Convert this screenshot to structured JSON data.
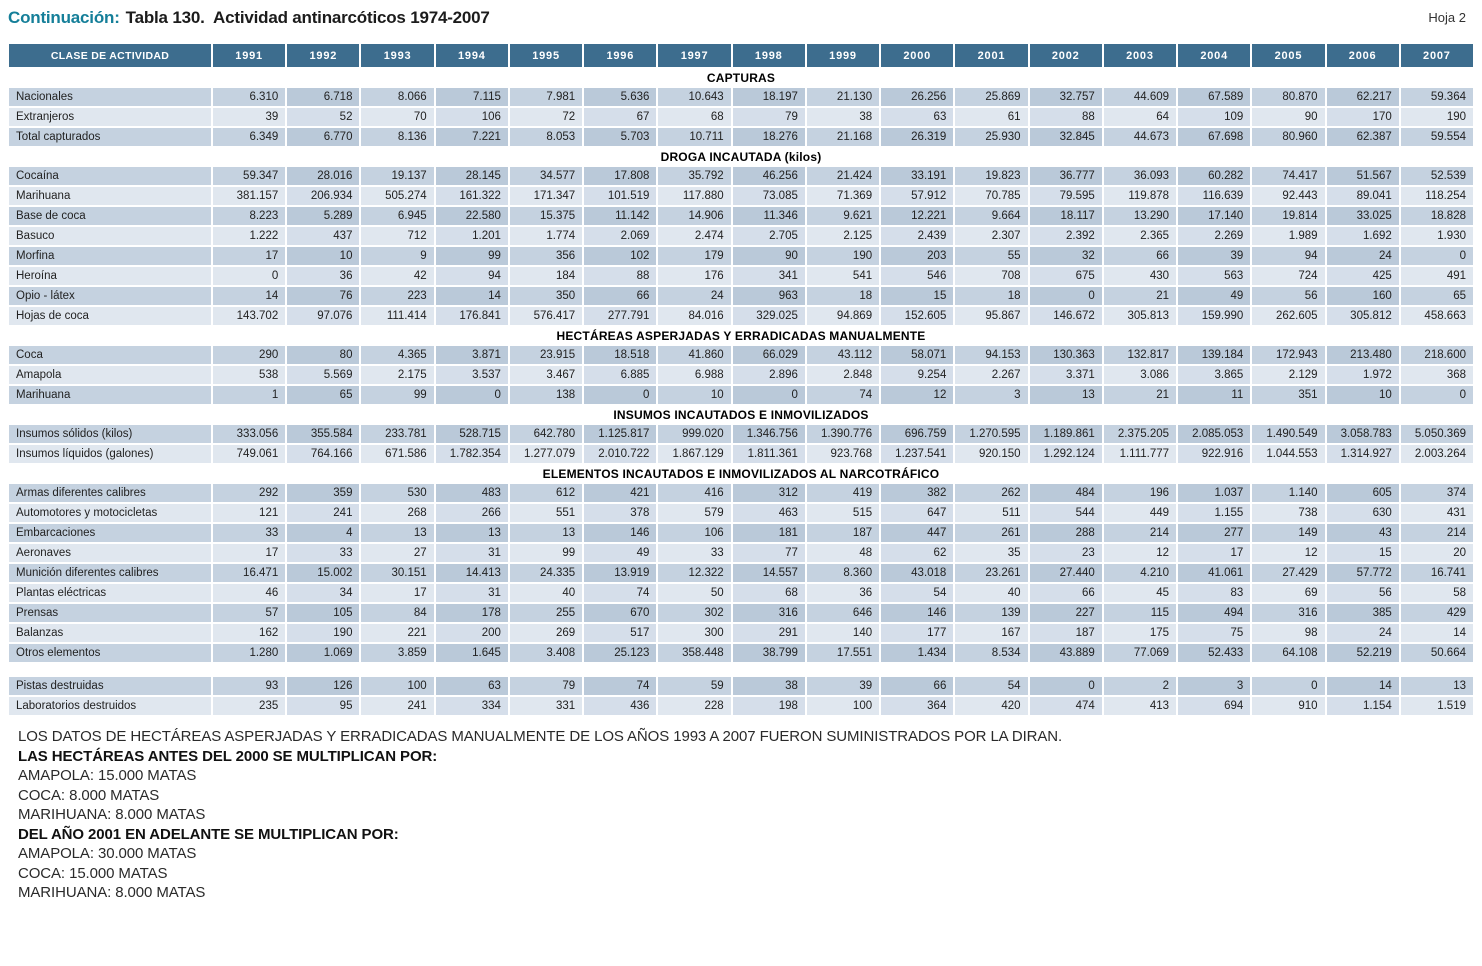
{
  "page": {
    "title_prefix": "Continuación:",
    "title": "Tabla 130.  Actividad antinarcóticos 1974-2007",
    "sheet_label": "Hoja 2"
  },
  "colors": {
    "header_bg": "#3d6d8e",
    "row_dark": "#c5d2e0",
    "row_light": "#e0e7ef",
    "accent_teal": "#157f99"
  },
  "table": {
    "header": {
      "activity_col": "CLASE DE ACTIVIDAD",
      "years": [
        "1991",
        "1992",
        "1993",
        "1994",
        "1995",
        "1996",
        "1997",
        "1998",
        "1999",
        "2000",
        "2001",
        "2002",
        "2003",
        "2004",
        "2005",
        "2006",
        "2007"
      ]
    },
    "sections": [
      {
        "title": "CAPTURAS",
        "rows": [
          {
            "label": "Nacionales",
            "values": [
              "6.310",
              "6.718",
              "8.066",
              "7.115",
              "7.981",
              "5.636",
              "10.643",
              "18.197",
              "21.130",
              "26.256",
              "25.869",
              "32.757",
              "44.609",
              "67.589",
              "80.870",
              "62.217",
              "59.364"
            ]
          },
          {
            "label": "Extranjeros",
            "values": [
              "39",
              "52",
              "70",
              "106",
              "72",
              "67",
              "68",
              "79",
              "38",
              "63",
              "61",
              "88",
              "64",
              "109",
              "90",
              "170",
              "190"
            ]
          },
          {
            "label": "Total capturados",
            "values": [
              "6.349",
              "6.770",
              "8.136",
              "7.221",
              "8.053",
              "5.703",
              "10.711",
              "18.276",
              "21.168",
              "26.319",
              "25.930",
              "32.845",
              "44.673",
              "67.698",
              "80.960",
              "62.387",
              "59.554"
            ]
          }
        ]
      },
      {
        "title": "DROGA INCAUTADA (kilos)",
        "rows": [
          {
            "label": "Cocaína",
            "values": [
              "59.347",
              "28.016",
              "19.137",
              "28.145",
              "34.577",
              "17.808",
              "35.792",
              "46.256",
              "21.424",
              "33.191",
              "19.823",
              "36.777",
              "36.093",
              "60.282",
              "74.417",
              "51.567",
              "52.539"
            ]
          },
          {
            "label": "Marihuana",
            "values": [
              "381.157",
              "206.934",
              "505.274",
              "161.322",
              "171.347",
              "101.519",
              "117.880",
              "73.085",
              "71.369",
              "57.912",
              "70.785",
              "79.595",
              "119.878",
              "116.639",
              "92.443",
              "89.041",
              "118.254"
            ]
          },
          {
            "label": "Base de coca",
            "values": [
              "8.223",
              "5.289",
              "6.945",
              "22.580",
              "15.375",
              "11.142",
              "14.906",
              "11.346",
              "9.621",
              "12.221",
              "9.664",
              "18.117",
              "13.290",
              "17.140",
              "19.814",
              "33.025",
              "18.828"
            ]
          },
          {
            "label": "Basuco",
            "values": [
              "1.222",
              "437",
              "712",
              "1.201",
              "1.774",
              "2.069",
              "2.474",
              "2.705",
              "2.125",
              "2.439",
              "2.307",
              "2.392",
              "2.365",
              "2.269",
              "1.989",
              "1.692",
              "1.930"
            ]
          },
          {
            "label": "Morfina",
            "values": [
              "17",
              "10",
              "9",
              "99",
              "356",
              "102",
              "179",
              "90",
              "190",
              "203",
              "55",
              "32",
              "66",
              "39",
              "94",
              "24",
              "0"
            ]
          },
          {
            "label": "Heroína",
            "values": [
              "0",
              "36",
              "42",
              "94",
              "184",
              "88",
              "176",
              "341",
              "541",
              "546",
              "708",
              "675",
              "430",
              "563",
              "724",
              "425",
              "491"
            ]
          },
          {
            "label": "Opio - látex",
            "values": [
              "14",
              "76",
              "223",
              "14",
              "350",
              "66",
              "24",
              "963",
              "18",
              "15",
              "18",
              "0",
              "21",
              "49",
              "56",
              "160",
              "65"
            ]
          },
          {
            "label": "Hojas de coca",
            "values": [
              "143.702",
              "97.076",
              "111.414",
              "176.841",
              "576.417",
              "277.791",
              "84.016",
              "329.025",
              "94.869",
              "152.605",
              "95.867",
              "146.672",
              "305.813",
              "159.990",
              "262.605",
              "305.812",
              "458.663"
            ]
          }
        ]
      },
      {
        "title": "HECTÁREAS ASPERJADAS Y ERRADICADAS MANUALMENTE",
        "rows": [
          {
            "label": "Coca",
            "values": [
              "290",
              "80",
              "4.365",
              "3.871",
              "23.915",
              "18.518",
              "41.860",
              "66.029",
              "43.112",
              "58.071",
              "94.153",
              "130.363",
              "132.817",
              "139.184",
              "172.943",
              "213.480",
              "218.600"
            ]
          },
          {
            "label": "Amapola",
            "values": [
              "538",
              "5.569",
              "2.175",
              "3.537",
              "3.467",
              "6.885",
              "6.988",
              "2.896",
              "2.848",
              "9.254",
              "2.267",
              "3.371",
              "3.086",
              "3.865",
              "2.129",
              "1.972",
              "368"
            ]
          },
          {
            "label": "Marihuana",
            "values": [
              "1",
              "65",
              "99",
              "0",
              "138",
              "0",
              "10",
              "0",
              "74",
              "12",
              "3",
              "13",
              "21",
              "11",
              "351",
              "10",
              "0"
            ]
          }
        ]
      },
      {
        "title": "INSUMOS INCAUTADOS E INMOVILIZADOS",
        "rows": [
          {
            "label": "Insumos sólidos (kilos)",
            "values": [
              "333.056",
              "355.584",
              "233.781",
              "528.715",
              "642.780",
              "1.125.817",
              "999.020",
              "1.346.756",
              "1.390.776",
              "696.759",
              "1.270.595",
              "1.189.861",
              "2.375.205",
              "2.085.053",
              "1.490.549",
              "3.058.783",
              "5.050.369"
            ]
          },
          {
            "label": "Insumos líquidos (galones)",
            "values": [
              "749.061",
              "764.166",
              "671.586",
              "1.782.354",
              "1.277.079",
              "2.010.722",
              "1.867.129",
              "1.811.361",
              "923.768",
              "1.237.541",
              "920.150",
              "1.292.124",
              "1.111.777",
              "922.916",
              "1.044.553",
              "1.314.927",
              "2.003.264"
            ]
          }
        ]
      },
      {
        "title": "ELEMENTOS INCAUTADOS E  INMOVILIZADOS AL NARCOTRÁFICO",
        "rows": [
          {
            "label": "Armas diferentes calibres",
            "values": [
              "292",
              "359",
              "530",
              "483",
              "612",
              "421",
              "416",
              "312",
              "419",
              "382",
              "262",
              "484",
              "196",
              "1.037",
              "1.140",
              "605",
              "374"
            ]
          },
          {
            "label": "Automotores y motocicletas",
            "values": [
              "121",
              "241",
              "268",
              "266",
              "551",
              "378",
              "579",
              "463",
              "515",
              "647",
              "511",
              "544",
              "449",
              "1.155",
              "738",
              "630",
              "431"
            ]
          },
          {
            "label": "Embarcaciones",
            "values": [
              "33",
              "4",
              "13",
              "13",
              "13",
              "146",
              "106",
              "181",
              "187",
              "447",
              "261",
              "288",
              "214",
              "277",
              "149",
              "43",
              "214"
            ]
          },
          {
            "label": "Aeronaves",
            "values": [
              "17",
              "33",
              "27",
              "31",
              "99",
              "49",
              "33",
              "77",
              "48",
              "62",
              "35",
              "23",
              "12",
              "17",
              "12",
              "15",
              "20"
            ]
          },
          {
            "label": "Munición diferentes calibres",
            "values": [
              "16.471",
              "15.002",
              "30.151",
              "14.413",
              "24.335",
              "13.919",
              "12.322",
              "14.557",
              "8.360",
              "43.018",
              "23.261",
              "27.440",
              "4.210",
              "41.061",
              "27.429",
              "57.772",
              "16.741"
            ]
          },
          {
            "label": "Plantas eléctricas",
            "values": [
              "46",
              "34",
              "17",
              "31",
              "40",
              "74",
              "50",
              "68",
              "36",
              "54",
              "40",
              "66",
              "45",
              "83",
              "69",
              "56",
              "58"
            ]
          },
          {
            "label": "Prensas",
            "values": [
              "57",
              "105",
              "84",
              "178",
              "255",
              "670",
              "302",
              "316",
              "646",
              "146",
              "139",
              "227",
              "115",
              "494",
              "316",
              "385",
              "429"
            ]
          },
          {
            "label": "Balanzas",
            "values": [
              "162",
              "190",
              "221",
              "200",
              "269",
              "517",
              "300",
              "291",
              "140",
              "177",
              "167",
              "187",
              "175",
              "75",
              "98",
              "24",
              "14"
            ]
          },
          {
            "label": "Otros elementos",
            "values": [
              "1.280",
              "1.069",
              "3.859",
              "1.645",
              "3.408",
              "25.123",
              "358.448",
              "38.799",
              "17.551",
              "1.434",
              "8.534",
              "43.889",
              "77.069",
              "52.433",
              "64.108",
              "52.219",
              "50.664"
            ]
          }
        ]
      },
      {
        "title": "",
        "spacer_before": true,
        "rows": [
          {
            "label": "Pistas destruidas",
            "values": [
              "93",
              "126",
              "100",
              "63",
              "79",
              "74",
              "59",
              "38",
              "39",
              "66",
              "54",
              "0",
              "2",
              "3",
              "0",
              "14",
              "13"
            ]
          },
          {
            "label": "Laboratorios destruidos",
            "values": [
              "235",
              "95",
              "241",
              "334",
              "331",
              "436",
              "228",
              "198",
              "100",
              "364",
              "420",
              "474",
              "413",
              "694",
              "910",
              "1.154",
              "1.519"
            ]
          }
        ]
      }
    ]
  },
  "footnotes": {
    "lines": [
      {
        "text": "LOS DATOS DE HECTÁREAS ASPERJADAS Y ERRADICADAS MANUALMENTE DE LOS AÑOS 1993 A 2007 FUERON SUMINISTRADOS POR LA DIRAN.",
        "bold": false
      },
      {
        "text": "LAS HECTÁREAS ANTES DEL 2000 SE MULTIPLICAN POR:",
        "bold": true
      },
      {
        "text": "AMAPOLA: 15.000 MATAS",
        "bold": false
      },
      {
        "text": "COCA: 8.000 MATAS",
        "bold": false
      },
      {
        "text": "MARIHUANA: 8.000 MATAS",
        "bold": false
      },
      {
        "text": "DEL AÑO 2001 EN ADELANTE SE MULTIPLICAN POR:",
        "bold": true
      },
      {
        "text": "AMAPOLA: 30.000 MATAS",
        "bold": false
      },
      {
        "text": "COCA: 15.000 MATAS",
        "bold": false
      },
      {
        "text": "MARIHUANA: 8.000 MATAS",
        "bold": false
      }
    ]
  }
}
